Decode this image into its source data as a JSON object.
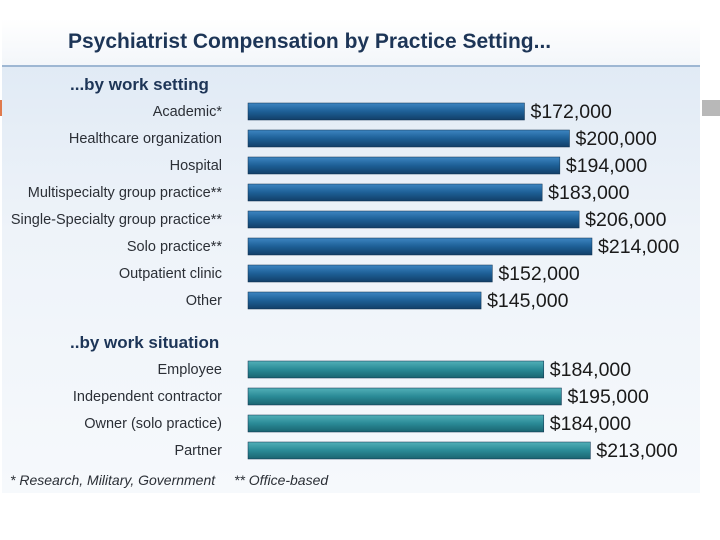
{
  "chart_data": {
    "type": "bar",
    "orientation": "horizontal",
    "title": "Psychiatrist Compensation by Practice Setting...",
    "xlim": [
      0,
      214000
    ],
    "grid": false,
    "legend": "none",
    "groups": [
      {
        "label": "...by work setting",
        "color": "#1d5f96",
        "categories": [
          "Academic*",
          "Healthcare organization",
          "Hospital",
          "Multispecialty group practice**",
          "Single-Specialty group practice**",
          "Solo practice**",
          "Outpatient clinic",
          "Other"
        ],
        "values": [
          172000,
          200000,
          194000,
          183000,
          206000,
          214000,
          152000,
          145000
        ],
        "value_labels": [
          "$172,000",
          "$200,000",
          "$194,000",
          "$183,000",
          "$206,000",
          "$214,000",
          "$152,000",
          "$145,000"
        ]
      },
      {
        "label": "..by work situation",
        "color": "#2a8a96",
        "categories": [
          "Employee",
          "Independent contractor",
          "Owner (solo practice)",
          "Partner"
        ],
        "values": [
          184000,
          195000,
          184000,
          213000
        ],
        "value_labels": [
          "$184,000",
          "$195,000",
          "$184,000",
          "$213,000"
        ]
      }
    ],
    "footnotes": [
      "* Research, Military, Government",
      "** Office-based"
    ]
  }
}
